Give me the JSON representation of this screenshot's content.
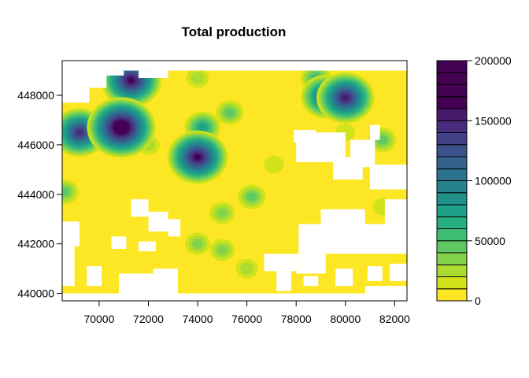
{
  "chart_data": {
    "type": "heatmap",
    "title": "Total production",
    "xlabel": "",
    "ylabel": "",
    "xlim": [
      68500,
      82500
    ],
    "ylim": [
      439700,
      449400
    ],
    "x_ticks": [
      "70000",
      "72000",
      "74000",
      "76000",
      "78000",
      "80000",
      "82000"
    ],
    "y_ticks": [
      "440000",
      "442000",
      "444000",
      "446000",
      "448000"
    ],
    "legend": {
      "placement": "right",
      "min": 0,
      "max": 200000,
      "step": 10000,
      "tick_labels": [
        "0",
        "50000",
        "100000",
        "150000",
        "200000"
      ],
      "colors": [
        "#fde725",
        "#d2e21b",
        "#addc30",
        "#84d44b",
        "#5ec962",
        "#3fbc73",
        "#28ae80",
        "#1fa088",
        "#21918c",
        "#26828e",
        "#2c728e",
        "#33638d",
        "#3b528b",
        "#424086",
        "#472d7b",
        "#48186a",
        "#440154"
      ]
    },
    "hotspots": [
      {
        "x": 70900,
        "y": 446700,
        "value": 195000
      },
      {
        "x": 71300,
        "y": 448600,
        "value": 165000
      },
      {
        "x": 74000,
        "y": 445500,
        "value": 160000
      },
      {
        "x": 69200,
        "y": 446500,
        "value": 145000
      },
      {
        "x": 80000,
        "y": 447900,
        "value": 150000
      },
      {
        "x": 79200,
        "y": 447950,
        "value": 120000
      },
      {
        "x": 78800,
        "y": 448700,
        "value": 55000
      },
      {
        "x": 74200,
        "y": 446700,
        "value": 75000
      },
      {
        "x": 75300,
        "y": 447300,
        "value": 40000
      },
      {
        "x": 76200,
        "y": 443900,
        "value": 40000
      },
      {
        "x": 75000,
        "y": 443250,
        "value": 35000
      },
      {
        "x": 74000,
        "y": 442000,
        "value": 35000
      },
      {
        "x": 75000,
        "y": 441750,
        "value": 35000
      },
      {
        "x": 68600,
        "y": 444100,
        "value": 40000
      },
      {
        "x": 81500,
        "y": 446200,
        "value": 40000
      },
      {
        "x": 80000,
        "y": 446500,
        "value": 15000
      },
      {
        "x": 72000,
        "y": 446000,
        "value": 20000
      },
      {
        "x": 74000,
        "y": 448700,
        "value": 20000
      },
      {
        "x": 76000,
        "y": 441000,
        "value": 20000
      },
      {
        "x": 77100,
        "y": 445200,
        "value": 15000
      },
      {
        "x": 81500,
        "y": 443500,
        "value": 15000
      }
    ]
  }
}
